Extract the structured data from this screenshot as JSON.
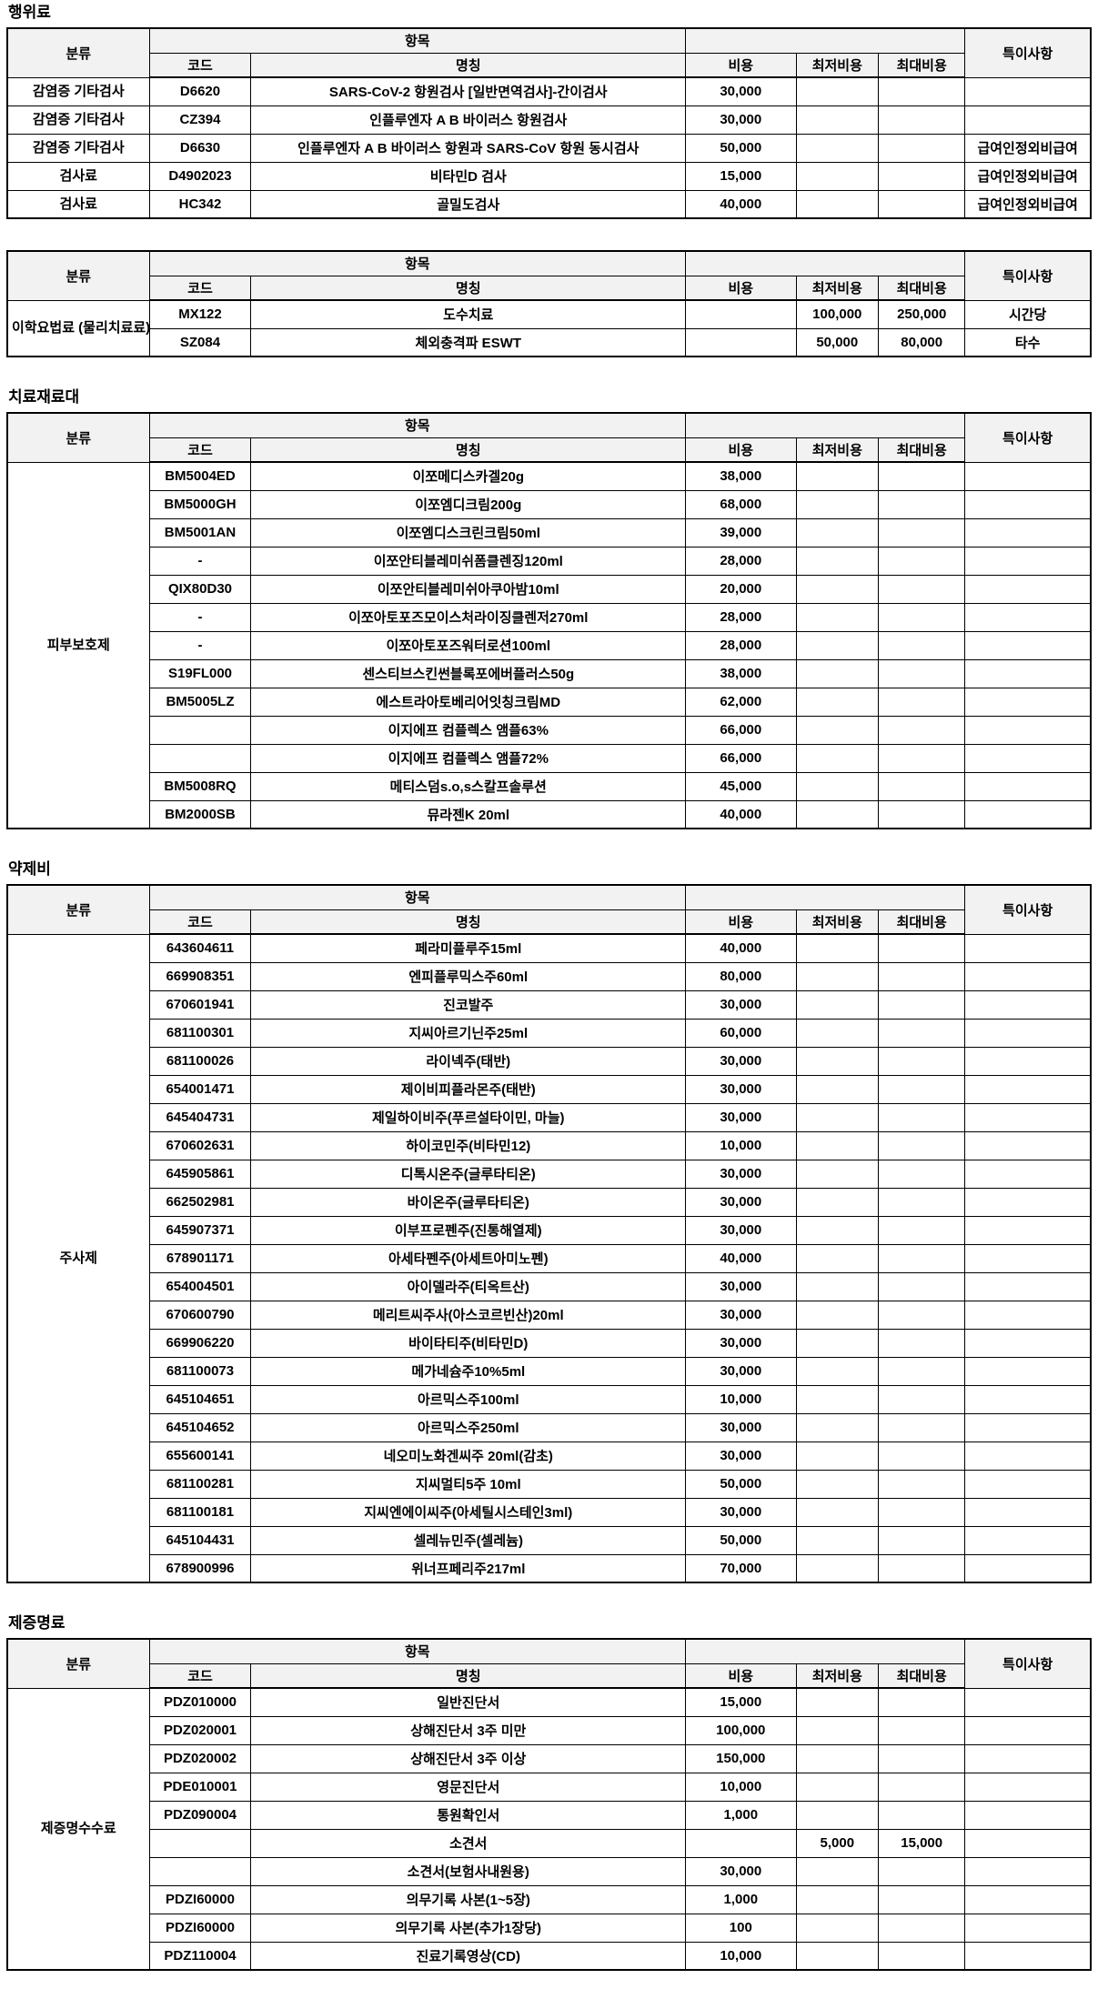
{
  "colors": {
    "header_bg": "#f2f2f2",
    "border": "#000000",
    "text": "#000000"
  },
  "columns": {
    "category": "분류",
    "item_group": "항목",
    "code": "코드",
    "name": "명칭",
    "cost": "비용",
    "min_cost": "최저비용",
    "max_cost": "최대비용",
    "note": "특이사항"
  },
  "sections": [
    {
      "title": "행위료",
      "rows": [
        {
          "category": "감염증 기타검사",
          "code": "D6620",
          "name": "SARS-CoV-2 항원검사 [일반면역검사]-간이검사",
          "cost": "30,000",
          "min": "",
          "max": "",
          "note": ""
        },
        {
          "category": "감염증 기타검사",
          "code": "CZ394",
          "name": "인플루엔자 A   B 바이러스 항원검사",
          "cost": "30,000",
          "min": "",
          "max": "",
          "note": ""
        },
        {
          "category": "감염증 기타검사",
          "code": "D6630",
          "name": "인플루엔자 A   B 바이러스 항원과 SARS-CoV 항원 동시검사",
          "cost": "50,000",
          "min": "",
          "max": "",
          "note": "급여인정외비급여"
        },
        {
          "category": "검사료",
          "code": "D4902023",
          "name": "비타민D 검사",
          "cost": "15,000",
          "min": "",
          "max": "",
          "note": "급여인정외비급여"
        },
        {
          "category": "검사료",
          "code": "HC342",
          "name": "골밀도검사",
          "cost": "40,000",
          "min": "",
          "max": "",
          "note": "급여인정외비급여"
        }
      ]
    },
    {
      "title": "",
      "category": "이학요법료\n(물리치료료)",
      "rows": [
        {
          "code": "MX122",
          "name": "도수치료",
          "cost": "",
          "min": "100,000",
          "max": "250,000",
          "note": "시간당"
        },
        {
          "code": "SZ084",
          "name": "체외충격파 ESWT",
          "cost": "",
          "min": "50,000",
          "max": "80,000",
          "note": "타수"
        }
      ]
    },
    {
      "title": "치료재료대",
      "category": "피부보호제",
      "rows": [
        {
          "code": "BM5004ED",
          "name": "이쪼메디스카겔20g",
          "cost": "38,000",
          "min": "",
          "max": "",
          "note": ""
        },
        {
          "code": "BM5000GH",
          "name": "이쪼엠디크림200g",
          "cost": "68,000",
          "min": "",
          "max": "",
          "note": ""
        },
        {
          "code": "BM5001AN",
          "name": "이쪼엠디스크린크림50ml",
          "cost": "39,000",
          "min": "",
          "max": "",
          "note": ""
        },
        {
          "code": "-",
          "name": "이쪼안티블레미쉬폼클렌징120ml",
          "cost": "28,000",
          "min": "",
          "max": "",
          "note": ""
        },
        {
          "code": "QIX80D30",
          "name": "이쪼안티블레미쉬아쿠아밤10ml",
          "cost": "20,000",
          "min": "",
          "max": "",
          "note": ""
        },
        {
          "code": "-",
          "name": "이쪼아토포즈모이스처라이징클렌저270ml",
          "cost": "28,000",
          "min": "",
          "max": "",
          "note": ""
        },
        {
          "code": "-",
          "name": "이쪼아토포즈워터로션100ml",
          "cost": "28,000",
          "min": "",
          "max": "",
          "note": ""
        },
        {
          "code": "S19FL000",
          "name": "센스티브스킨썬블록포에버플러스50g",
          "cost": "38,000",
          "min": "",
          "max": "",
          "note": ""
        },
        {
          "code": "BM5005LZ",
          "name": "에스트라아토베리어잇칭크림MD",
          "cost": "62,000",
          "min": "",
          "max": "",
          "note": ""
        },
        {
          "code": "",
          "name": "이지에프 컴플렉스 앰플63%",
          "cost": "66,000",
          "min": "",
          "max": "",
          "note": ""
        },
        {
          "code": "",
          "name": "이지에프 컴플렉스 앰플72%",
          "cost": "66,000",
          "min": "",
          "max": "",
          "note": ""
        },
        {
          "code": "BM5008RQ",
          "name": "메티스덤s.o,s스칼프솔루션",
          "cost": "45,000",
          "min": "",
          "max": "",
          "note": ""
        },
        {
          "code": "BM2000SB",
          "name": "뮤라젠K 20ml",
          "cost": "40,000",
          "min": "",
          "max": "",
          "note": ""
        }
      ]
    },
    {
      "title": "약제비",
      "category": "주사제",
      "rows": [
        {
          "code": "643604611",
          "name": "페라미플루주15ml",
          "cost": "40,000",
          "min": "",
          "max": "",
          "note": ""
        },
        {
          "code": "669908351",
          "name": "엔피플루믹스주60ml",
          "cost": "80,000",
          "min": "",
          "max": "",
          "note": ""
        },
        {
          "code": "670601941",
          "name": "진코발주",
          "cost": "30,000",
          "min": "",
          "max": "",
          "note": ""
        },
        {
          "code": "681100301",
          "name": "지씨아르기닌주25ml",
          "cost": "60,000",
          "min": "",
          "max": "",
          "note": ""
        },
        {
          "code": "681100026",
          "name": "라이넥주(태반)",
          "cost": "30,000",
          "min": "",
          "max": "",
          "note": ""
        },
        {
          "code": "654001471",
          "name": "제이비피플라몬주(태반)",
          "cost": "30,000",
          "min": "",
          "max": "",
          "note": ""
        },
        {
          "code": "645404731",
          "name": "제일하이비주(푸르설타이민, 마늘)",
          "cost": "30,000",
          "min": "",
          "max": "",
          "note": ""
        },
        {
          "code": "670602631",
          "name": "하이코민주(비타민12)",
          "cost": "10,000",
          "min": "",
          "max": "",
          "note": ""
        },
        {
          "code": "645905861",
          "name": "디톡시온주(글루타티온)",
          "cost": "30,000",
          "min": "",
          "max": "",
          "note": ""
        },
        {
          "code": "662502981",
          "name": "바이온주(글루타티온)",
          "cost": "30,000",
          "min": "",
          "max": "",
          "note": ""
        },
        {
          "code": "645907371",
          "name": "이부프로펜주(진통해열제)",
          "cost": "30,000",
          "min": "",
          "max": "",
          "note": ""
        },
        {
          "code": "678901171",
          "name": "아세타펜주(아세트아미노펜)",
          "cost": "40,000",
          "min": "",
          "max": "",
          "note": ""
        },
        {
          "code": "654004501",
          "name": "아이델라주(티옥트산)",
          "cost": "30,000",
          "min": "",
          "max": "",
          "note": ""
        },
        {
          "code": "670600790",
          "name": "메리트씨주사(아스코르빈산)20ml",
          "cost": "30,000",
          "min": "",
          "max": "",
          "note": ""
        },
        {
          "code": "669906220",
          "name": "바이타티주(비타민D)",
          "cost": "30,000",
          "min": "",
          "max": "",
          "note": ""
        },
        {
          "code": "681100073",
          "name": "메가네슘주10%5ml",
          "cost": "30,000",
          "min": "",
          "max": "",
          "note": ""
        },
        {
          "code": "645104651",
          "name": "아르믹스주100ml",
          "cost": "10,000",
          "min": "",
          "max": "",
          "note": ""
        },
        {
          "code": "645104652",
          "name": "아르믹스주250ml",
          "cost": "30,000",
          "min": "",
          "max": "",
          "note": ""
        },
        {
          "code": "655600141",
          "name": "네오미노화겐씨주 20ml(감초)",
          "cost": "30,000",
          "min": "",
          "max": "",
          "note": ""
        },
        {
          "code": "681100281",
          "name": "지씨멀티5주 10ml",
          "cost": "50,000",
          "min": "",
          "max": "",
          "note": ""
        },
        {
          "code": "681100181",
          "name": "지씨엔에이씨주(아세틸시스테인3ml)",
          "cost": "30,000",
          "min": "",
          "max": "",
          "note": ""
        },
        {
          "code": "645104431",
          "name": "셀레뉴민주(셀레늄)",
          "cost": "50,000",
          "min": "",
          "max": "",
          "note": ""
        },
        {
          "code": "678900996",
          "name": "위너프페리주217ml",
          "cost": "70,000",
          "min": "",
          "max": "",
          "note": ""
        }
      ]
    },
    {
      "title": "제증명료",
      "category": "제증명수수료",
      "rows": [
        {
          "code": "PDZ010000",
          "name": "일반진단서",
          "cost": "15,000",
          "min": "",
          "max": "",
          "note": ""
        },
        {
          "code": "PDZ020001",
          "name": "상해진단서 3주 미만",
          "cost": "100,000",
          "min": "",
          "max": "",
          "note": ""
        },
        {
          "code": "PDZ020002",
          "name": "상해진단서 3주 이상",
          "cost": "150,000",
          "min": "",
          "max": "",
          "note": ""
        },
        {
          "code": "PDE010001",
          "name": "영문진단서",
          "cost": "10,000",
          "min": "",
          "max": "",
          "note": ""
        },
        {
          "code": "PDZ090004",
          "name": "통원확인서",
          "cost": "1,000",
          "min": "",
          "max": "",
          "note": ""
        },
        {
          "code": "",
          "name": "소견서",
          "cost": "",
          "min": "5,000",
          "max": "15,000",
          "note": ""
        },
        {
          "code": "",
          "name": "소견서(보험사내원용)",
          "cost": "30,000",
          "min": "",
          "max": "",
          "note": ""
        },
        {
          "code": "PDZI60000",
          "name": "의무기록 사본(1~5장)",
          "cost": "1,000",
          "min": "",
          "max": "",
          "note": ""
        },
        {
          "code": "PDZI60000",
          "name": "의무기록 사본(추가1장당)",
          "cost": "100",
          "min": "",
          "max": "",
          "note": ""
        },
        {
          "code": "PDZ110004",
          "name": "진료기록영상(CD)",
          "cost": "10,000",
          "min": "",
          "max": "",
          "note": ""
        }
      ]
    }
  ]
}
